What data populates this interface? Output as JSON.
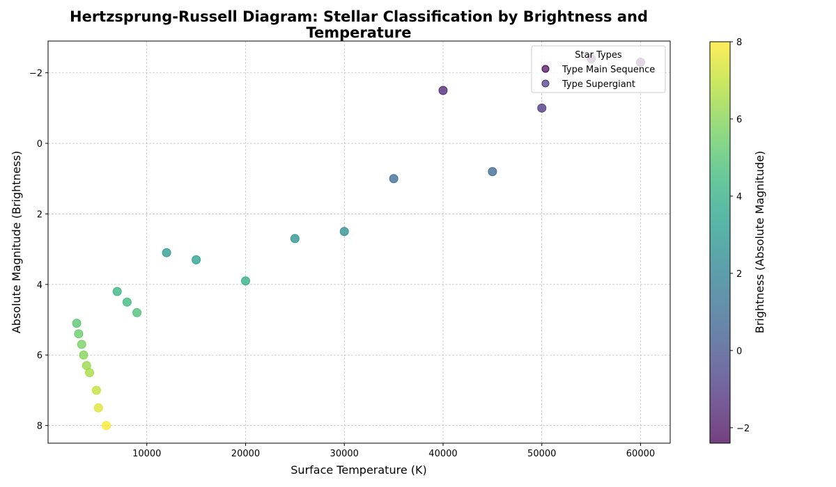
{
  "chart_data": {
    "type": "scatter",
    "title_lines": [
      "Hertzsprung-Russell Diagram: Stellar Classification by Brightness and",
      "Temperature"
    ],
    "xlabel": "Surface Temperature (K)",
    "ylabel": "Absolute Magnitude (Brightness)",
    "xlim": [
      0,
      63000
    ],
    "ylim": [
      8.5,
      -2.9
    ],
    "y_inverted": true,
    "xticks": [
      10000,
      20000,
      30000,
      40000,
      50000,
      60000
    ],
    "yticks": [
      -2,
      0,
      2,
      4,
      6,
      8
    ],
    "grid": true,
    "legend": {
      "title": "Star Types",
      "placement": "top-right",
      "entries": [
        "Type Main Sequence",
        "Type Supergiant"
      ]
    },
    "colorbar": {
      "label": "Brightness (Absolute Magnitude)",
      "colormap": "viridis-reversed",
      "range": [
        -2.4,
        8
      ],
      "ticks": [
        -2,
        0,
        2,
        4,
        6,
        8
      ]
    },
    "points": [
      {
        "x": 2900,
        "y": 5.1
      },
      {
        "x": 3100,
        "y": 5.4
      },
      {
        "x": 3400,
        "y": 5.7
      },
      {
        "x": 3600,
        "y": 6.0
      },
      {
        "x": 3900,
        "y": 6.3
      },
      {
        "x": 4200,
        "y": 6.5
      },
      {
        "x": 4900,
        "y": 7.0
      },
      {
        "x": 5100,
        "y": 7.5
      },
      {
        "x": 5900,
        "y": 8.0
      },
      {
        "x": 7000,
        "y": 4.2
      },
      {
        "x": 8000,
        "y": 4.5
      },
      {
        "x": 9000,
        "y": 4.8
      },
      {
        "x": 12000,
        "y": 3.1
      },
      {
        "x": 15000,
        "y": 3.3
      },
      {
        "x": 20000,
        "y": 3.9
      },
      {
        "x": 25000,
        "y": 2.7
      },
      {
        "x": 30000,
        "y": 2.5
      },
      {
        "x": 35000,
        "y": 1.0
      },
      {
        "x": 40000,
        "y": -1.5
      },
      {
        "x": 45000,
        "y": 0.8
      },
      {
        "x": 50000,
        "y": -1.0
      },
      {
        "x": 55000,
        "y": -2.4
      },
      {
        "x": 60000,
        "y": -2.3
      }
    ]
  }
}
